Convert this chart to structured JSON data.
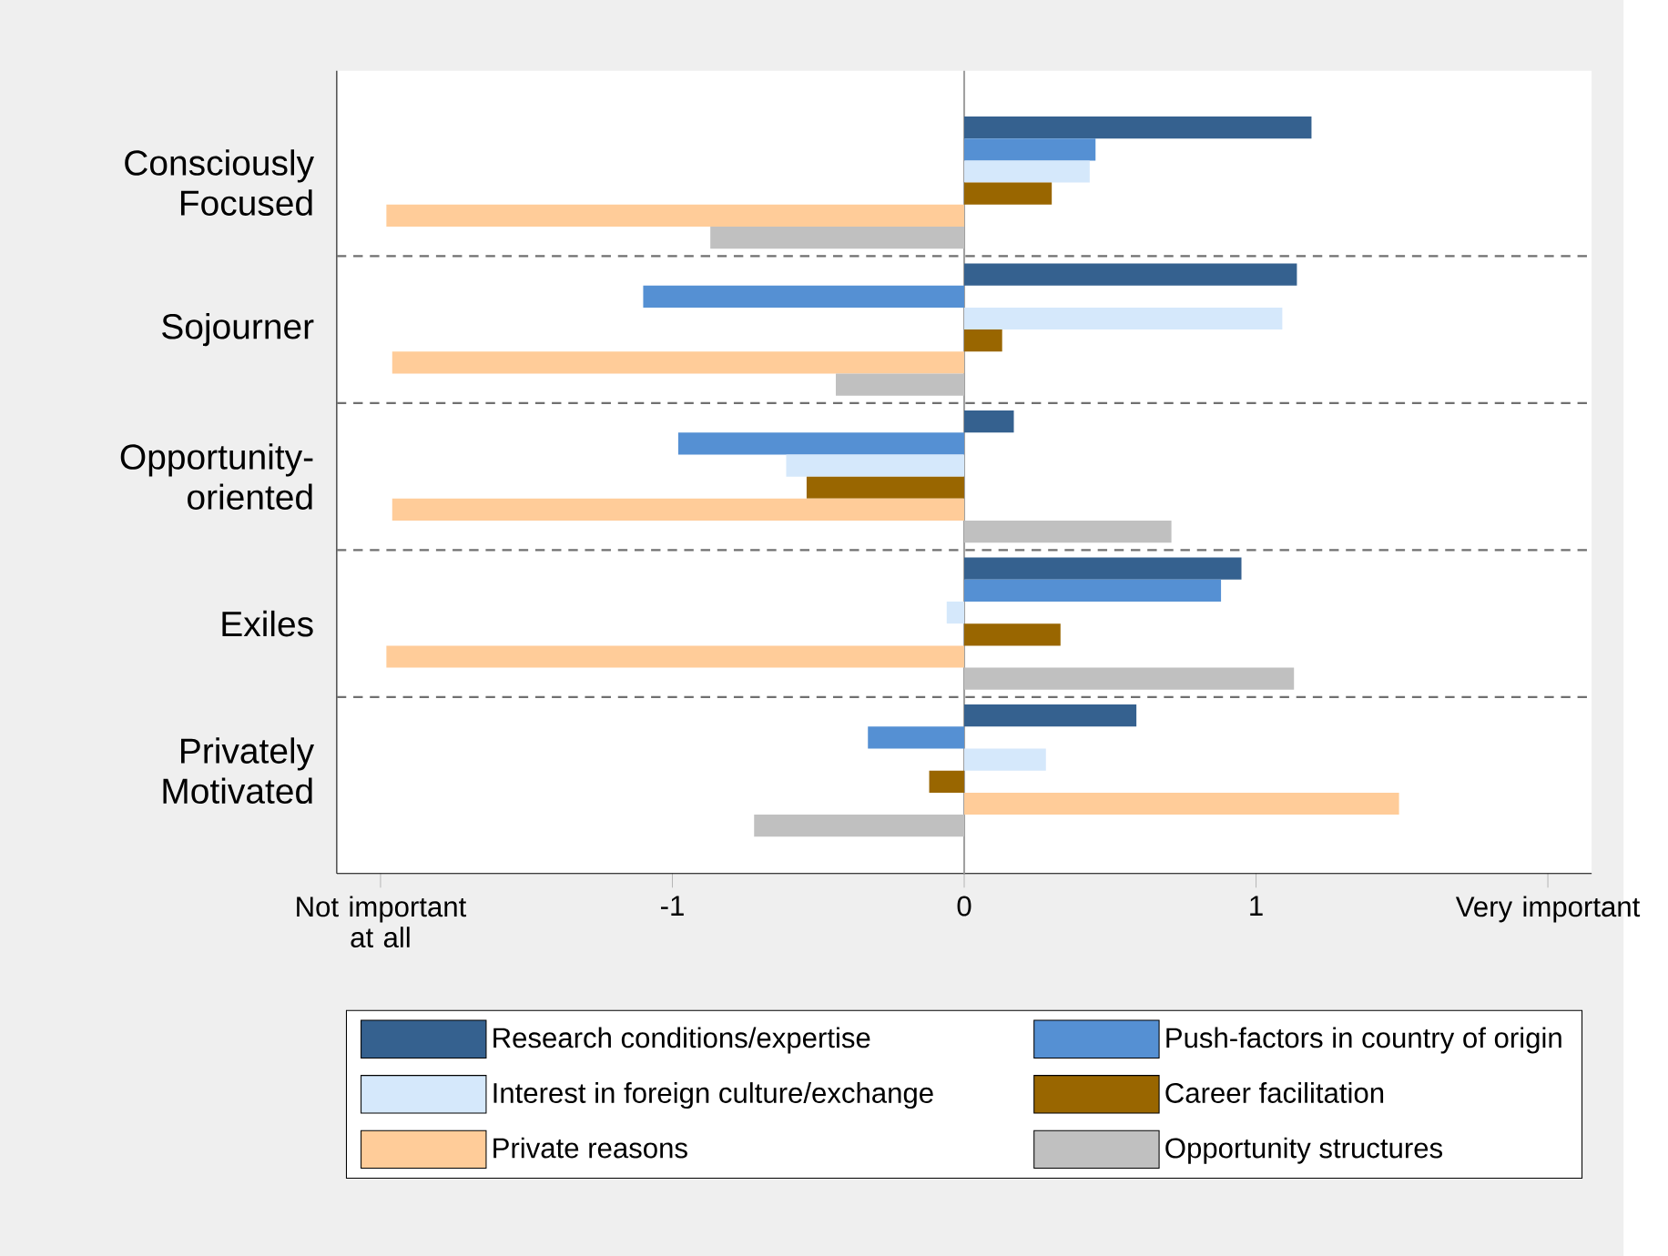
{
  "chart_data": {
    "type": "bar",
    "orientation": "horizontal",
    "categories": [
      "Consciously Focused",
      "Sojourner",
      "Opportunity-oriented",
      "Exiles",
      "Privately Motivated"
    ],
    "series": [
      {
        "name": "Research conditions/expertise",
        "color": "#35618f",
        "values": [
          1.19,
          1.14,
          0.17,
          0.95,
          0.59
        ]
      },
      {
        "name": "Push-factors in country of origin",
        "color": "#5590d3",
        "values": [
          0.45,
          -1.1,
          -0.98,
          0.88,
          -0.33
        ]
      },
      {
        "name": "Interest in foreign culture/exchange",
        "color": "#d5e8fb",
        "values": [
          0.43,
          1.09,
          -0.61,
          -0.06,
          0.28
        ]
      },
      {
        "name": "Career facilitation",
        "color": "#996600",
        "values": [
          0.3,
          0.13,
          -0.54,
          0.33,
          -0.12
        ]
      },
      {
        "name": "Private reasons",
        "color": "#ffcc99",
        "values": [
          -1.98,
          -1.96,
          -1.96,
          -1.98,
          1.49
        ]
      },
      {
        "name": "Opportunity structures",
        "color": "#c0c0c0",
        "values": [
          -0.87,
          -0.44,
          0.71,
          1.13,
          -0.72
        ]
      }
    ],
    "xlim": [
      -2.15,
      2.15
    ],
    "xticks": [
      {
        "value": -2,
        "label": "Not important at all"
      },
      -1,
      0,
      1,
      {
        "value": 2,
        "label": "Very important"
      }
    ],
    "ref_lines": [
      {
        "axis": "x",
        "value": 0,
        "color": "#a0a0a0"
      }
    ],
    "grid": "y",
    "legend": "bottom"
  }
}
